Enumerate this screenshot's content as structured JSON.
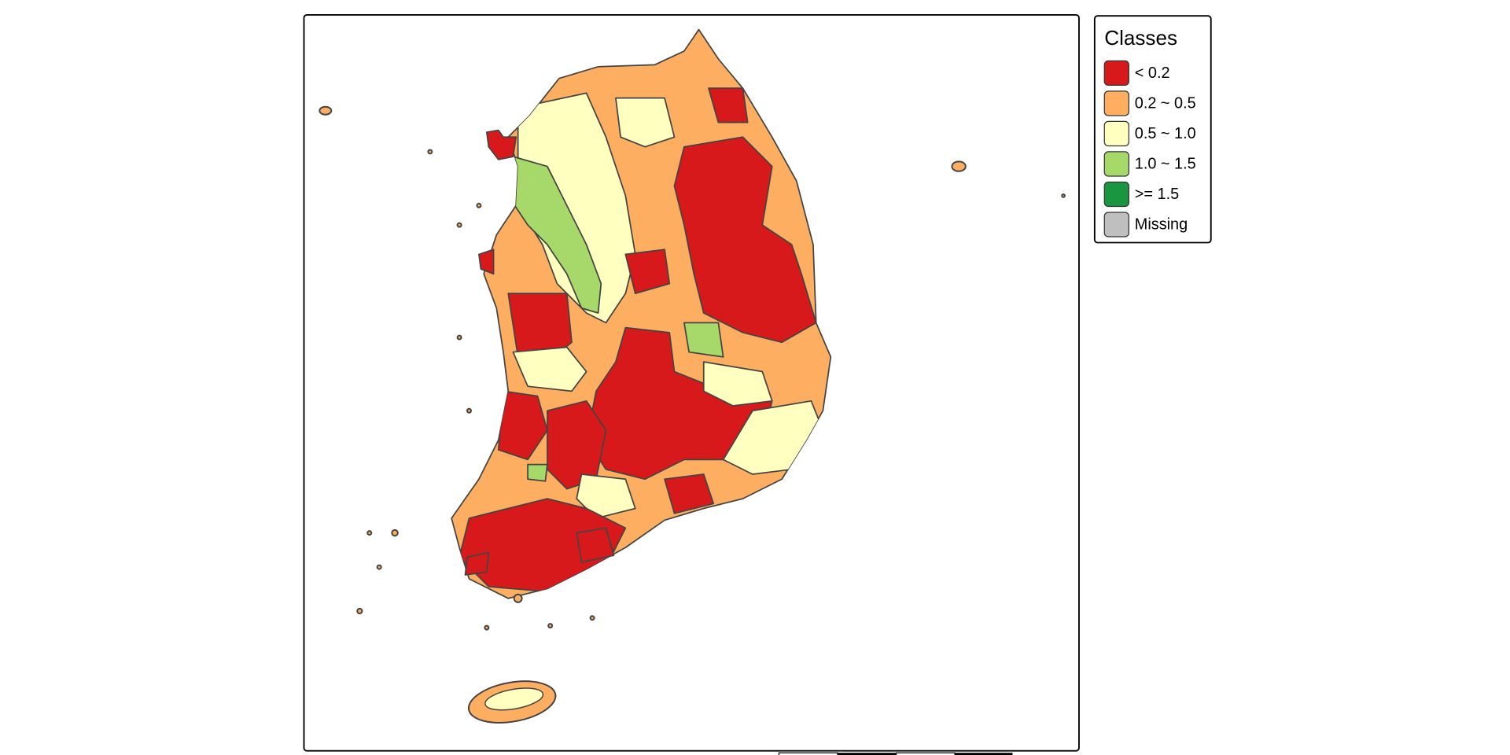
{
  "legend": {
    "title": "Classes",
    "items": [
      {
        "label": "< 0.2",
        "color": "#d7191c"
      },
      {
        "label": "0.2 ~ 0.5",
        "color": "#fdae61"
      },
      {
        "label": "0.5 ~ 1.0",
        "color": "#ffffbf"
      },
      {
        "label": "1.0 ~ 1.5",
        "color": "#a6d96a"
      },
      {
        "label": ">= 1.5",
        "color": "#1a9641"
      },
      {
        "label": "Missing",
        "color": "#bfbfbf"
      }
    ]
  }
}
